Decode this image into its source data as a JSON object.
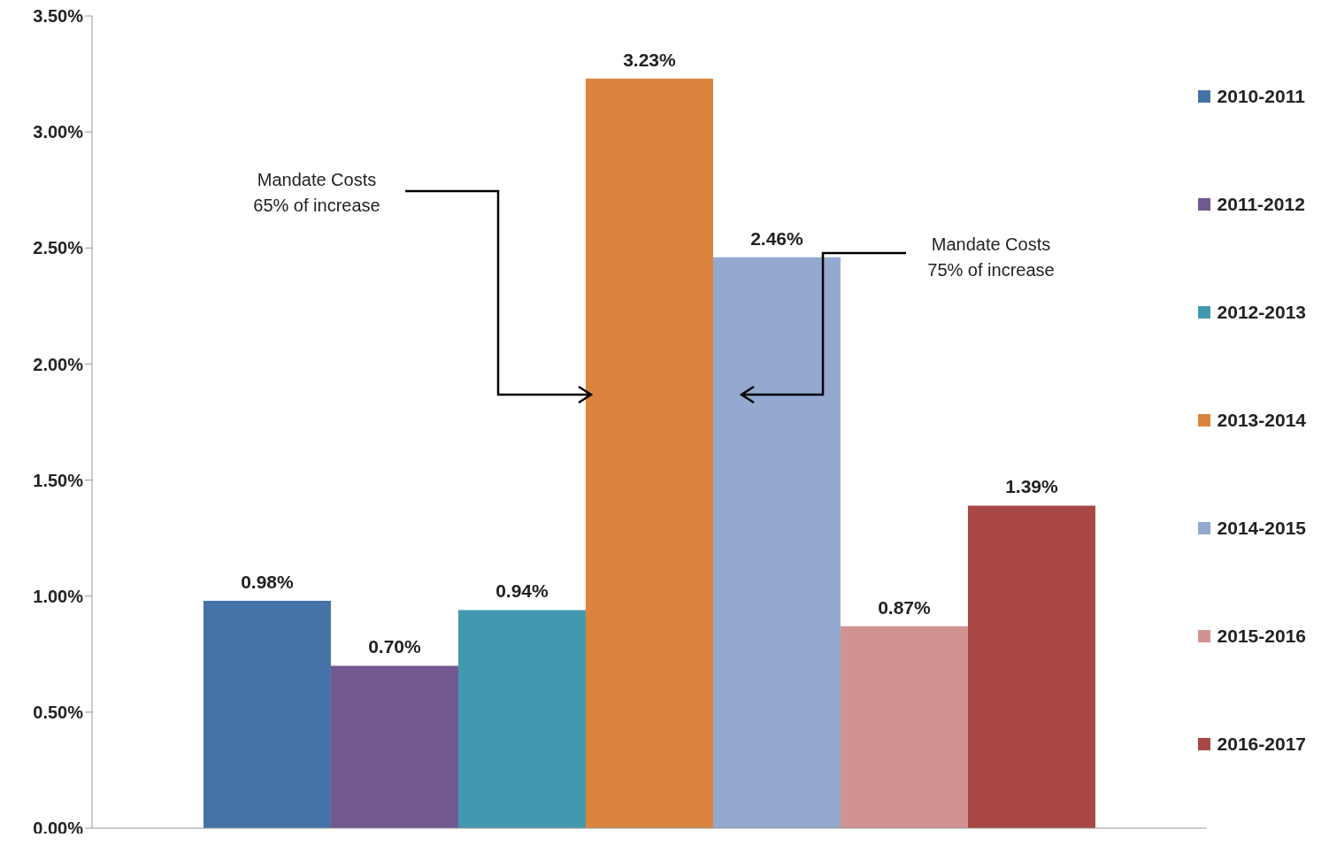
{
  "chart_data": {
    "type": "bar",
    "categories": [
      null
    ],
    "series": [
      {
        "name": "2010-2011",
        "color": "#4573a7",
        "values": [
          0.98
        ],
        "value_labels": [
          "0.98%"
        ]
      },
      {
        "name": "2011-2012",
        "color": "#71588f",
        "values": [
          0.7
        ],
        "value_labels": [
          "0.70%"
        ]
      },
      {
        "name": "2012-2013",
        "color": "#4298af",
        "values": [
          0.94
        ],
        "value_labels": [
          "0.94%"
        ]
      },
      {
        "name": "2013-2014",
        "color": "#db843d",
        "values": [
          3.23
        ],
        "value_labels": [
          "3.23%"
        ]
      },
      {
        "name": "2014-2015",
        "color": "#93a9cf",
        "values": [
          2.46
        ],
        "value_labels": [
          "2.46%"
        ]
      },
      {
        "name": "2015-2016",
        "color": "#d19392",
        "values": [
          0.87
        ],
        "value_labels": [
          "0.87%"
        ]
      },
      {
        "name": "2016-2017",
        "color": "#a94744",
        "values": [
          1.39
        ],
        "value_labels": [
          "1.39%"
        ]
      }
    ],
    "ylim": [
      0,
      3.5
    ],
    "yticks": [
      {
        "value": 0,
        "label": "0.00%"
      },
      {
        "value": 0.5,
        "label": "0.50%"
      },
      {
        "value": 1,
        "label": "1.00%"
      },
      {
        "value": 1.5,
        "label": "1.50%"
      },
      {
        "value": 2,
        "label": "2.00%"
      },
      {
        "value": 2.5,
        "label": "2.50%"
      },
      {
        "value": 3,
        "label": "3.00%"
      },
      {
        "value": 3.5,
        "label": "3.50%"
      }
    ],
    "tick_labels": "y",
    "grid": false,
    "legend": "right",
    "annotations": [
      "Mandate Costs\n65% of increase",
      "Mandate Costs\n75% of increase"
    ]
  }
}
